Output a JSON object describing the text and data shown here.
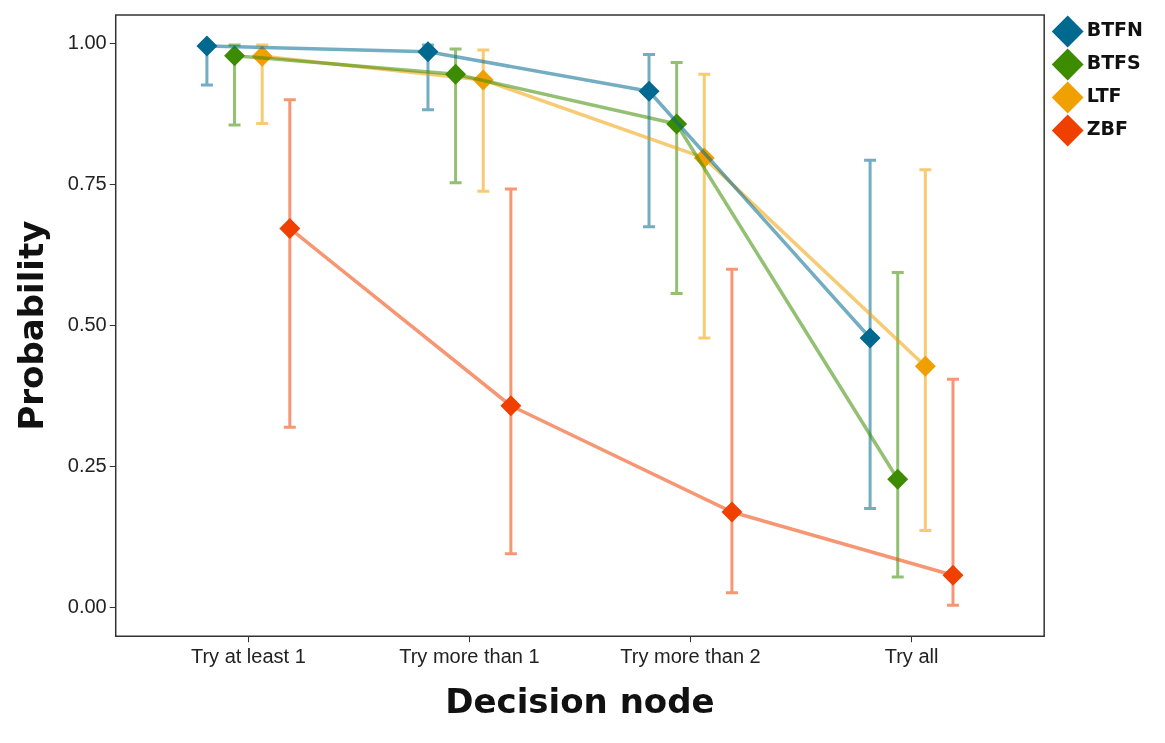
{
  "chart_data": {
    "type": "line",
    "xlabel": "Decision node",
    "ylabel": "Probability",
    "categories": [
      "Try at least 1",
      "Try more than 1",
      "Try more than 2",
      "Try all"
    ],
    "series": [
      {
        "name": "BTFN",
        "color": "#00698f",
        "values": [
          0.995,
          0.985,
          0.915,
          0.478
        ],
        "errors": [
          [
            0.926,
            0.998
          ],
          [
            0.882,
            0.997
          ],
          [
            0.675,
            0.98
          ],
          [
            0.176,
            0.793
          ]
        ]
      },
      {
        "name": "BTFS",
        "color": "#3d8c00",
        "values": [
          0.978,
          0.945,
          0.857,
          0.228
        ],
        "errors": [
          [
            0.855,
            0.997
          ],
          [
            0.753,
            0.99
          ],
          [
            0.557,
            0.966
          ],
          [
            0.055,
            0.594
          ]
        ]
      },
      {
        "name": "LTF",
        "color": "#f0a000",
        "values": [
          0.977,
          0.935,
          0.797,
          0.428
        ],
        "errors": [
          [
            0.858,
            0.997
          ],
          [
            0.738,
            0.988
          ],
          [
            0.478,
            0.945
          ],
          [
            0.137,
            0.776
          ]
        ]
      },
      {
        "name": "ZBF",
        "color": "#f04000",
        "values": [
          0.672,
          0.358,
          0.17,
          0.058
        ],
        "errors": [
          [
            0.32,
            0.9
          ],
          [
            0.096,
            0.742
          ],
          [
            0.027,
            0.6
          ],
          [
            0.005,
            0.405
          ]
        ]
      }
    ],
    "ylim": [
      -0.05,
      1.05
    ],
    "yticks": [
      {
        "value": 0,
        "label": "0.00"
      },
      {
        "value": 0.25,
        "label": "0.25"
      },
      {
        "value": 0.5,
        "label": "0.50"
      },
      {
        "value": 0.75,
        "label": "0.75"
      },
      {
        "value": 1,
        "label": "1.00"
      }
    ],
    "grid": false,
    "legend": "top right",
    "marker": "diamond",
    "line_style": "solid"
  }
}
